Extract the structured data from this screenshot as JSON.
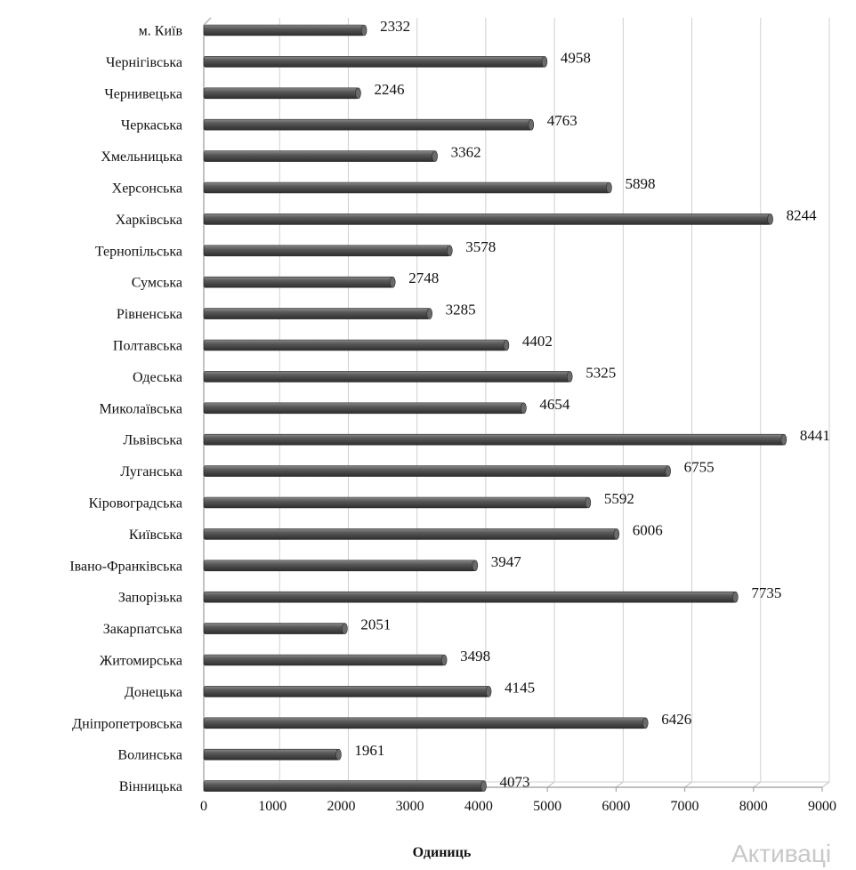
{
  "chart_data": {
    "type": "bar",
    "orientation": "horizontal",
    "title": "",
    "xlabel": "Одиниць",
    "ylabel": "",
    "xlim": [
      0,
      9000
    ],
    "xticks": [
      "0",
      "1000",
      "2000",
      "3000",
      "4000",
      "5000",
      "6000",
      "7000",
      "8000",
      "9000"
    ],
    "grid": true,
    "bar_color": "#555555",
    "categories": [
      "м. Київ",
      "Чернігівська",
      "Чернивецька",
      "Черкаська",
      "Хмельницька",
      "Херсонська",
      "Харківська",
      "Тернопільська",
      "Сумська",
      "Рівненська",
      "Полтавська",
      "Одеська",
      "Миколаївська",
      "Львівська",
      "Луганська",
      "Кіровоградська",
      "Київська",
      "Івано-Франківська",
      "Запорізька",
      "Закарпатська",
      "Житомирська",
      "Донецька",
      "Дніпропетровська",
      "Волинська",
      "Вінницька"
    ],
    "values": [
      2332,
      4958,
      2246,
      4763,
      3362,
      5898,
      8244,
      3578,
      2748,
      3285,
      4402,
      5325,
      4654,
      8441,
      6755,
      5592,
      6006,
      3947,
      7735,
      2051,
      3498,
      4145,
      6426,
      1961,
      4073
    ]
  },
  "watermark": "Активаці"
}
